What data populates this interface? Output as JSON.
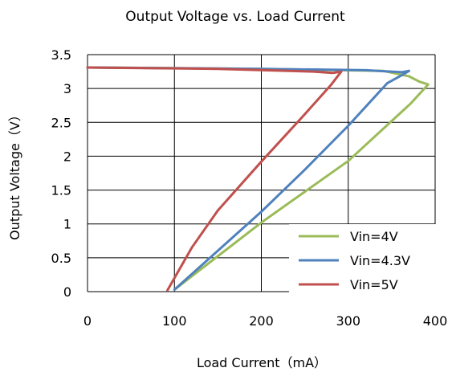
{
  "chart_data": {
    "type": "line",
    "title": "Output Voltage vs. Load Current",
    "xlabel": "Load Current（mA）",
    "ylabel": "Output Voltage（V）",
    "xlim": [
      0,
      400
    ],
    "ylim": [
      0,
      3.5
    ],
    "xticks": [
      "0",
      "100",
      "200",
      "300",
      "400"
    ],
    "yticks": [
      "0",
      "0.5",
      "1",
      "1.5",
      "2",
      "2.5",
      "3",
      "3.5"
    ],
    "grid": true,
    "legend": "bottom-right",
    "series": [
      {
        "name": "Vin=4V",
        "color": "#9BBB59",
        "points": [
          [
            0,
            3.31
          ],
          [
            200,
            3.29
          ],
          [
            340,
            3.26
          ],
          [
            370,
            3.18
          ],
          [
            382,
            3.1
          ],
          [
            392,
            3.06
          ],
          [
            372,
            2.78
          ],
          [
            300,
            1.93
          ],
          [
            200,
            1.02
          ],
          [
            100,
            0.03
          ]
        ]
      },
      {
        "name": "Vin=4.3V",
        "color": "#4F81BD",
        "points": [
          [
            0,
            3.31
          ],
          [
            200,
            3.29
          ],
          [
            320,
            3.27
          ],
          [
            362,
            3.24
          ],
          [
            370,
            3.26
          ],
          [
            362,
            3.2
          ],
          [
            345,
            3.08
          ],
          [
            300,
            2.45
          ],
          [
            250,
            1.8
          ],
          [
            200,
            1.18
          ],
          [
            100,
            0.03
          ]
        ]
      },
      {
        "name": "Vin=5V",
        "color": "#C0504D",
        "points": [
          [
            0,
            3.31
          ],
          [
            150,
            3.29
          ],
          [
            260,
            3.25
          ],
          [
            282,
            3.23
          ],
          [
            292,
            3.25
          ],
          [
            280,
            3.05
          ],
          [
            250,
            2.62
          ],
          [
            200,
            1.92
          ],
          [
            150,
            1.2
          ],
          [
            120,
            0.65
          ],
          [
            92,
            0.02
          ]
        ]
      }
    ]
  }
}
